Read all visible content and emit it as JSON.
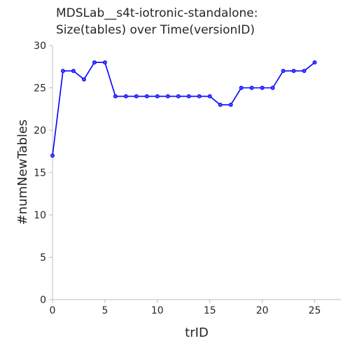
{
  "chart_data": {
    "type": "line",
    "title_lines": [
      "MDSLab__s4t-iotronic-standalone:",
      "Size(tables) over Time(versionID)"
    ],
    "xlabel": "trID",
    "ylabel": "#numNewTables",
    "xlim": [
      0,
      27.5
    ],
    "ylim": [
      0,
      30
    ],
    "x_ticks": [
      0,
      5,
      10,
      15,
      20,
      25
    ],
    "y_ticks": [
      0,
      5,
      10,
      15,
      20,
      25,
      30
    ],
    "grid": false,
    "legend": "none",
    "series": [
      {
        "color": "#0000ff",
        "x": [
          0,
          1,
          2,
          3,
          4,
          5,
          6,
          7,
          8,
          9,
          10,
          11,
          12,
          13,
          14,
          15,
          16,
          17,
          18,
          19,
          20,
          21,
          22,
          23,
          24,
          25
        ],
        "y": [
          17,
          27,
          27,
          26,
          28,
          28,
          24,
          24,
          24,
          24,
          24,
          24,
          24,
          24,
          24,
          24,
          23,
          23,
          25,
          25,
          25,
          25,
          27,
          27,
          27,
          28
        ]
      }
    ]
  }
}
